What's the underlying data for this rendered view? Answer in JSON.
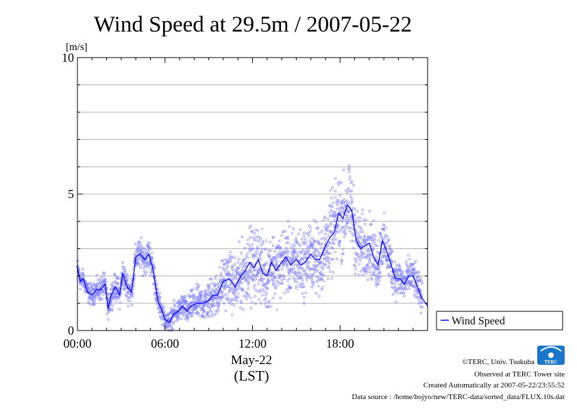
{
  "chart_data": {
    "type": "scatter",
    "title": "Wind Speed at 29.5m / 2007-05-22",
    "ylabel": "[m/s]",
    "xlabel_date": "May-22",
    "xlabel_tz": "(LST)",
    "ylim": [
      0,
      10
    ],
    "xlim_hours": [
      0,
      24
    ],
    "y_ticks": [
      {
        "value": 0,
        "label": "0"
      },
      {
        "value": 5,
        "label": "5"
      },
      {
        "value": 10,
        "label": "10"
      }
    ],
    "x_ticks": [
      {
        "hour": 0,
        "label": "00:00"
      },
      {
        "hour": 6,
        "label": "06:00"
      },
      {
        "hour": 12,
        "label": "12:00"
      },
      {
        "hour": 18,
        "label": "18:00"
      }
    ],
    "grid": true,
    "legend_position": "right",
    "series": [
      {
        "name": "Wind Speed",
        "color": "#0000ff",
        "scatter_color": "#8080ff",
        "mean_line": {
          "hours": [
            0,
            0.2,
            0.4,
            0.7,
            1.0,
            1.3,
            1.6,
            1.9,
            2.1,
            2.3,
            2.6,
            2.9,
            3.1,
            3.4,
            3.7,
            4.0,
            4.3,
            4.6,
            4.9,
            5.2,
            5.5,
            5.8,
            6.0,
            6.3,
            6.6,
            6.9,
            7.2,
            7.5,
            7.8,
            8.2,
            8.6,
            9.0,
            9.3,
            9.6,
            10.0,
            10.4,
            10.8,
            11.2,
            11.5,
            11.8,
            12.1,
            12.4,
            12.7,
            13.0,
            13.3,
            13.6,
            14.0,
            14.3,
            14.6,
            15.0,
            15.3,
            15.6,
            16.0,
            16.3,
            16.6,
            17.0,
            17.3,
            17.6,
            17.9,
            18.2,
            18.5,
            18.8,
            19.1,
            19.4,
            19.7,
            20.0,
            20.3,
            20.6,
            20.9,
            21.2,
            21.5,
            21.8,
            22.1,
            22.4,
            22.7,
            23.0,
            23.3,
            23.6,
            24.0
          ],
          "values": [
            2.3,
            1.8,
            1.9,
            1.4,
            1.3,
            1.5,
            1.5,
            1.7,
            0.8,
            1.3,
            1.6,
            1.3,
            2.1,
            1.6,
            1.4,
            2.7,
            2.8,
            2.6,
            2.8,
            2.2,
            1.1,
            0.7,
            0.4,
            0.3,
            0.6,
            0.7,
            0.9,
            0.7,
            0.9,
            1.0,
            1.0,
            1.1,
            1.3,
            1.3,
            1.8,
            1.9,
            1.6,
            2.0,
            2.2,
            2.5,
            2.3,
            2.6,
            2.1,
            2.0,
            2.5,
            2.2,
            2.5,
            2.7,
            2.4,
            2.6,
            2.4,
            2.5,
            2.8,
            2.6,
            2.6,
            3.1,
            3.4,
            3.6,
            4.3,
            4.1,
            4.6,
            4.4,
            3.3,
            3.0,
            3.1,
            3.2,
            2.7,
            2.4,
            3.3,
            2.9,
            2.4,
            1.9,
            1.9,
            1.7,
            2.0,
            2.0,
            1.6,
            1.2,
            0.9
          ]
        },
        "scatter_spread": {
          "hours": [
            0,
            2,
            4,
            5,
            6,
            8,
            10,
            12,
            14,
            16,
            17,
            18,
            19,
            20,
            21,
            22,
            23,
            24
          ],
          "halfwidth": [
            0.3,
            0.4,
            0.5,
            0.5,
            0.3,
            0.5,
            0.8,
            1.2,
            1.1,
            1.1,
            1.3,
            1.4,
            1.2,
            1.0,
            0.9,
            0.6,
            0.6,
            0.5
          ]
        }
      }
    ]
  },
  "legend": {
    "label": "Wind Speed"
  },
  "footer": {
    "copyright": "©TERC, Univ. Tsukuba",
    "observed": "Observed at TERC Tower site",
    "created": "Created Automatically at 2007-05-22/23:55:52",
    "source": "Data source : /home/hojyo/new/TERC-data/sorted_data/FLUX.10s.dat"
  },
  "logo": {
    "text": "TERC",
    "color": "#1976c8"
  }
}
